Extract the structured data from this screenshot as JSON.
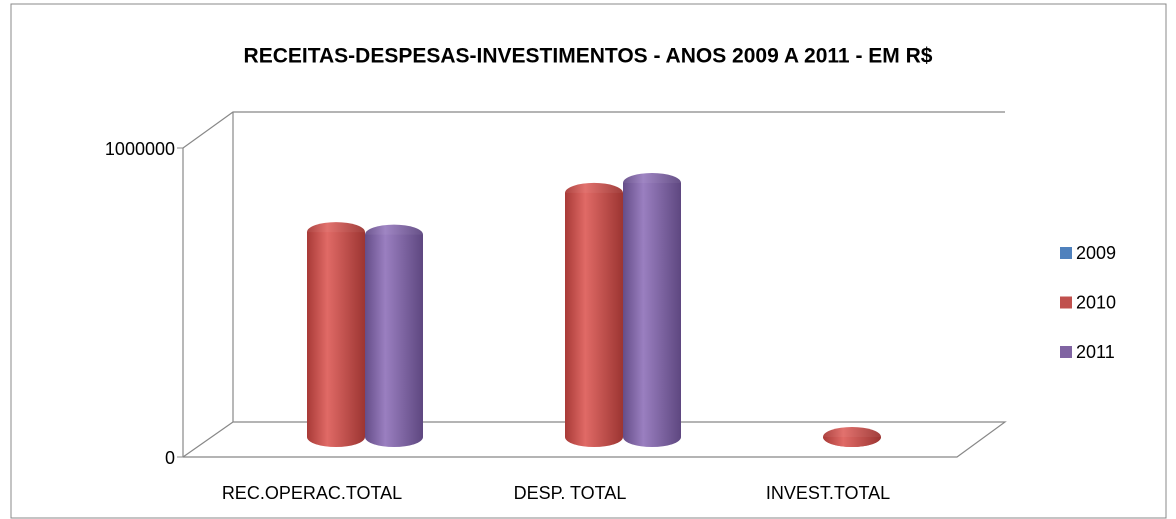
{
  "chart_data": {
    "type": "bar3d",
    "title": "RECEITAS-DESPESAS-INVESTIMENTOS - ANOS 2009 A 2011  - EM R$",
    "categories": [
      "REC.OPERAC.TOTAL",
      "DESP. TOTAL",
      "INVEST.TOTAL"
    ],
    "series": [
      {
        "name": "2009",
        "color": "#4f81bd",
        "values": [
          null,
          null,
          null
        ]
      },
      {
        "name": "2010",
        "color": "#c0504d",
        "values": [
          663000,
          790000,
          0
        ]
      },
      {
        "name": "2011",
        "color": "#8064a2",
        "values": [
          655000,
          822000,
          null
        ]
      }
    ],
    "ylim": [
      0,
      1000000
    ],
    "yticks": [
      0,
      1000000
    ],
    "legend": "right"
  }
}
